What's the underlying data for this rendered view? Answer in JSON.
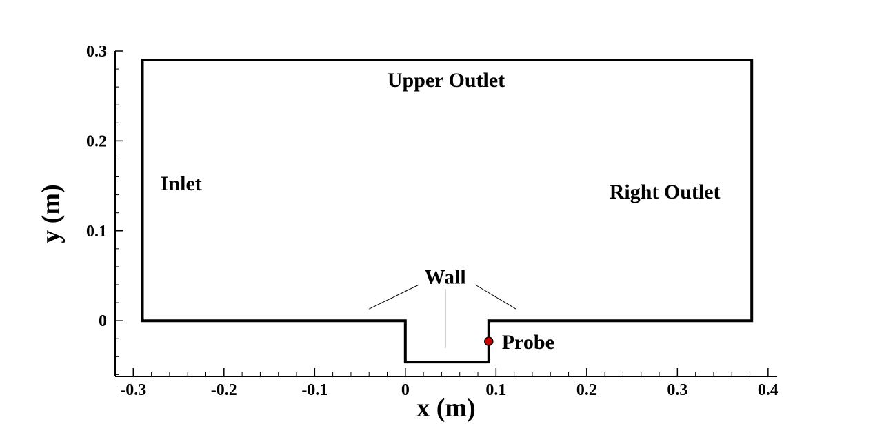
{
  "chart_data": {
    "type": "diagram",
    "xlabel": "x (m)",
    "ylabel": "y (m)",
    "xlim": [
      -0.32,
      0.41
    ],
    "ylim": [
      -0.062,
      0.3
    ],
    "xticks": [
      -0.3,
      -0.2,
      -0.1,
      0,
      0.1,
      0.2,
      0.3,
      0.4
    ],
    "xtick_labels": [
      "-0.3",
      "-0.2",
      "-0.1",
      "0",
      "0.1",
      "0.2",
      "0.3",
      "0.4"
    ],
    "yticks": [
      0,
      0.1,
      0.2,
      0.3
    ],
    "ytick_labels": [
      "0",
      "0.1",
      "0.2",
      "0.3"
    ],
    "domain_outline": [
      [
        -0.29,
        0.29
      ],
      [
        0.382,
        0.29
      ],
      [
        0.382,
        0.0
      ],
      [
        0.092,
        0.0
      ],
      [
        0.092,
        -0.046
      ],
      [
        0.0,
        -0.046
      ],
      [
        0.0,
        0.0
      ],
      [
        -0.29,
        0.0
      ],
      [
        -0.29,
        0.29
      ]
    ],
    "probe": {
      "label": "Probe",
      "x": 0.092,
      "y": -0.023,
      "color": "#cc0000"
    },
    "annotations": [
      {
        "id": "upper-outlet",
        "text": "Upper Outlet",
        "x": 0.045,
        "y": 0.26
      },
      {
        "id": "inlet",
        "text": "Inlet",
        "x": -0.27,
        "y": 0.145
      },
      {
        "id": "right-outlet",
        "text": "Right Outlet",
        "x": 0.225,
        "y": 0.136
      },
      {
        "id": "wall",
        "text": "Wall",
        "x": 0.044,
        "y": 0.041
      }
    ],
    "wall_leaders": [
      [
        [
          0.015,
          0.04
        ],
        [
          -0.04,
          0.013
        ]
      ],
      [
        [
          0.044,
          0.035
        ],
        [
          0.044,
          -0.03
        ]
      ],
      [
        [
          0.077,
          0.04
        ],
        [
          0.122,
          0.013
        ]
      ]
    ]
  }
}
